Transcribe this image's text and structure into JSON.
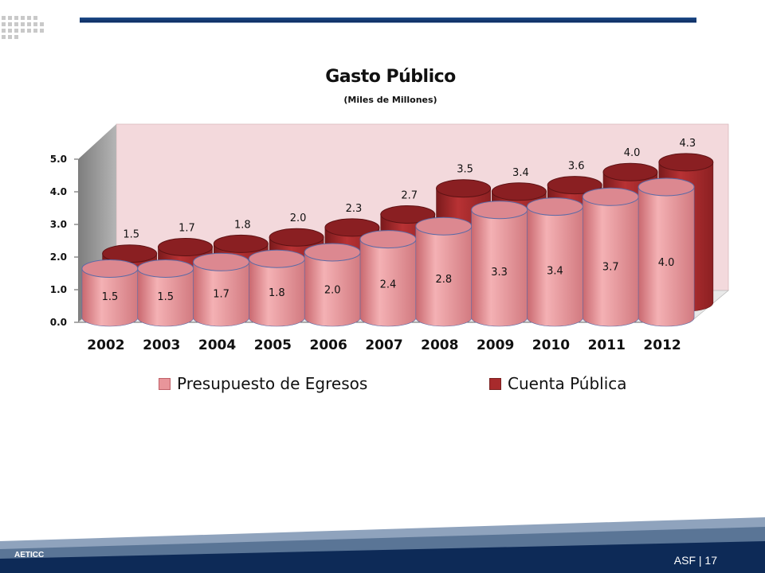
{
  "colors": {
    "presupuesto": "#e8959a",
    "cuenta": "#a82a2c",
    "wall": "#f3d9dc",
    "footer_dark": "#0d2a57",
    "footer_mid": "#5a7596",
    "top_rule": "#1f4e8c"
  },
  "chart_data": {
    "type": "bar",
    "title": "Gasto Público",
    "subtitle": "(Miles de Millones)",
    "categories": [
      "2002",
      "2003",
      "2004",
      "2005",
      "2006",
      "2007",
      "2008",
      "2009",
      "2010",
      "2011",
      "2012"
    ],
    "series": [
      {
        "name": "Presupuesto de Egresos",
        "values": [
          1.5,
          1.5,
          1.7,
          1.8,
          2.0,
          2.4,
          2.8,
          3.3,
          3.4,
          3.7,
          4.0
        ],
        "labels": [
          "1.5",
          "1.5",
          "1.7",
          "1.8",
          "2.0",
          "2.4",
          "2.8",
          "3.3",
          "3.4",
          "3.7",
          "4.0"
        ]
      },
      {
        "name": "Cuenta Pública",
        "values": [
          1.5,
          1.7,
          1.8,
          2.0,
          2.3,
          2.7,
          3.5,
          3.4,
          3.6,
          4.0,
          4.3
        ],
        "labels": [
          "1.5",
          "1.7",
          "1.8",
          "2.0",
          "2.3",
          "2.7",
          "3.5",
          "3.4",
          "3.6",
          "4.0",
          "4.3"
        ]
      }
    ],
    "y_ticks": [
      "0.0",
      "1.0",
      "2.0",
      "3.0",
      "4.0",
      "5.0"
    ],
    "ylim": [
      0,
      5
    ],
    "style": "3d-cylinder",
    "legend_position": "bottom"
  },
  "footer": {
    "left_text": "AETICC",
    "page_label": "ASF | 17"
  }
}
